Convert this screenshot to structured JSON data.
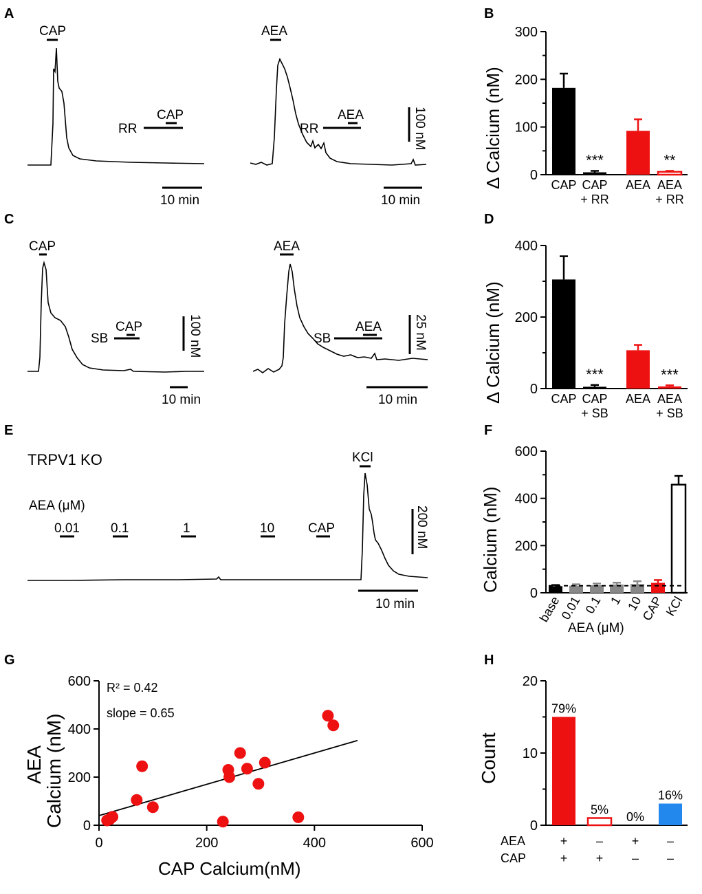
{
  "panel_labels": [
    "A",
    "B",
    "C",
    "D",
    "E",
    "F",
    "G",
    "H"
  ],
  "panel_A": {
    "left": {
      "drug": "CAP",
      "blocker": "RR",
      "drug2": "CAP",
      "time_scale": "10 min"
    },
    "right": {
      "drug": "AEA",
      "blocker": "RR",
      "drug2": "AEA",
      "time_scale": "10 min",
      "amp_scale": "100 nM"
    }
  },
  "panel_C": {
    "left": {
      "drug": "CAP",
      "blocker": "SB",
      "drug2": "CAP",
      "time_scale": "10 min",
      "amp_scale": "100 nM"
    },
    "right": {
      "drug": "AEA",
      "blocker": "SB",
      "drug2": "AEA",
      "time_scale": "10 min",
      "amp_scale": "25 nM"
    }
  },
  "panel_E": {
    "title": "TRPV1 KO",
    "aea_label": "AEA (μM)",
    "doses": [
      "0.01",
      "0.1",
      "1",
      "10",
      "CAP"
    ],
    "kcl_label": "KCl",
    "amp_scale": "200 nM",
    "time_scale": "10 min"
  },
  "chart_data": [
    {
      "id": "B",
      "type": "bar",
      "ylabel": "Δ Calcium (nM)",
      "ylim": [
        0,
        300
      ],
      "yticks": [
        "0",
        "100",
        "200",
        "300"
      ],
      "categories": [
        "CAP",
        "CAP + RR",
        "AEA",
        "AEA + RR"
      ],
      "cat_line1": [
        "CAP",
        "CAP",
        "AEA",
        "AEA"
      ],
      "cat_line2": [
        "",
        "+ RR",
        "",
        "+ RR"
      ],
      "values": [
        182,
        5,
        92,
        6
      ],
      "errors": [
        30,
        3,
        24,
        2
      ],
      "colors": [
        "#000000",
        "#000000",
        "#ee1111",
        "#ee1111"
      ],
      "filled": [
        true,
        true,
        true,
        false
      ],
      "significance": [
        "",
        "***",
        "",
        "**"
      ]
    },
    {
      "id": "D",
      "type": "bar",
      "ylabel": "Δ Calcium (nM)",
      "ylim": [
        0,
        400
      ],
      "yticks": [
        "0",
        "200",
        "400"
      ],
      "categories": [
        "CAP",
        "CAP + SB",
        "AEA",
        "AEA + SB"
      ],
      "cat_line1": [
        "CAP",
        "CAP",
        "AEA",
        "AEA"
      ],
      "cat_line2": [
        "",
        "+ SB",
        "",
        "+ SB"
      ],
      "values": [
        305,
        5,
        107,
        6
      ],
      "errors": [
        65,
        5,
        15,
        3
      ],
      "colors": [
        "#000000",
        "#000000",
        "#ee1111",
        "#ee1111"
      ],
      "filled": [
        true,
        true,
        true,
        true
      ],
      "significance": [
        "",
        "***",
        "",
        "***"
      ]
    },
    {
      "id": "F",
      "type": "bar",
      "ylabel": "Calcium (nM)",
      "ylim": [
        0,
        600
      ],
      "yticks": [
        "0",
        "200",
        "400",
        "600"
      ],
      "categories": [
        "base",
        "0.01",
        "0.1",
        "1",
        "10",
        "CAP",
        "KCl"
      ],
      "values": [
        28,
        30,
        32,
        35,
        37,
        42,
        458
      ],
      "errors": [
        5,
        6,
        7,
        8,
        12,
        12,
        37
      ],
      "colors": [
        "#000000",
        "#888888",
        "#888888",
        "#888888",
        "#888888",
        "#ee1111",
        "#000000"
      ],
      "filled": [
        true,
        true,
        true,
        true,
        true,
        true,
        false
      ],
      "baseline": 30,
      "group_label": "AEA (μM)"
    },
    {
      "id": "G",
      "type": "scatter",
      "xlabel": "CAP Calcium(nM)",
      "ylabel_line1": "AEA",
      "ylabel_line2": "Calcium (nM)",
      "xlim": [
        0,
        600
      ],
      "ylim": [
        0,
        600
      ],
      "xticks": [
        "0",
        "200",
        "400",
        "600"
      ],
      "yticks": [
        "0",
        "200",
        "400",
        "600"
      ],
      "r2_label": "R² = 0.42",
      "slope_label": "slope = 0.65",
      "points": [
        [
          15,
          20
        ],
        [
          20,
          25
        ],
        [
          25,
          35
        ],
        [
          70,
          105
        ],
        [
          80,
          245
        ],
        [
          100,
          75
        ],
        [
          230,
          15
        ],
        [
          240,
          230
        ],
        [
          242,
          200
        ],
        [
          262,
          300
        ],
        [
          275,
          235
        ],
        [
          296,
          172
        ],
        [
          308,
          260
        ],
        [
          370,
          33
        ],
        [
          425,
          455
        ],
        [
          435,
          415
        ]
      ],
      "fit": {
        "x0": 0,
        "y0": 40,
        "x1": 480,
        "y1": 352
      }
    },
    {
      "id": "H",
      "type": "bar",
      "ylabel": "Count",
      "ylim": [
        0,
        20
      ],
      "yticks": [
        "0",
        "10",
        "20"
      ],
      "values": [
        15,
        1,
        0,
        3
      ],
      "percent_labels": [
        "79%",
        "5%",
        "0%",
        "16%"
      ],
      "colors": [
        "#ee1111",
        "#ee1111",
        "#000000",
        "#2288ee"
      ],
      "filled": [
        true,
        false,
        true,
        true
      ],
      "row_labels": [
        "AEA",
        "CAP"
      ],
      "aea_signs": [
        "+",
        "–",
        "+",
        "–"
      ],
      "cap_signs": [
        "+",
        "+",
        "–",
        "–"
      ]
    }
  ]
}
